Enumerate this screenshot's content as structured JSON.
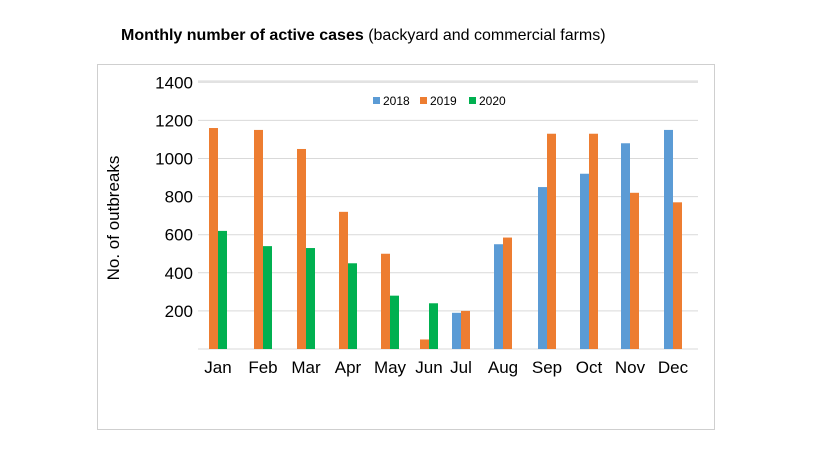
{
  "title": {
    "bold": "Monthly number of active cases",
    "rest": "(backyard and commercial farms)"
  },
  "chart_data": {
    "type": "bar",
    "title": "Monthly number of active cases (backyard and commercial farms)",
    "xlabel": "",
    "ylabel": "No. of outbreaks",
    "ylim": [
      0,
      1400
    ],
    "yticks": [
      200,
      400,
      600,
      800,
      1000,
      1200,
      1400
    ],
    "grid": true,
    "legend": "top-center",
    "categories": [
      "Jan",
      "Feb",
      "Mar",
      "Apr",
      "May",
      "Jun",
      "Jul",
      "Aug",
      "Sep",
      "Oct",
      "Nov",
      "Dec"
    ],
    "series": [
      {
        "name": "2018",
        "color": "#5b9bd5",
        "values": [
          null,
          null,
          null,
          null,
          null,
          null,
          190,
          550,
          850,
          920,
          1080,
          1150
        ]
      },
      {
        "name": "2019",
        "color": "#ed7d31",
        "values": [
          1160,
          1150,
          1050,
          720,
          500,
          50,
          200,
          585,
          1130,
          1130,
          820,
          770
        ]
      },
      {
        "name": "2020",
        "color": "#00b050",
        "values": [
          620,
          540,
          530,
          450,
          280,
          240,
          null,
          null,
          null,
          null,
          null,
          null
        ]
      }
    ]
  }
}
